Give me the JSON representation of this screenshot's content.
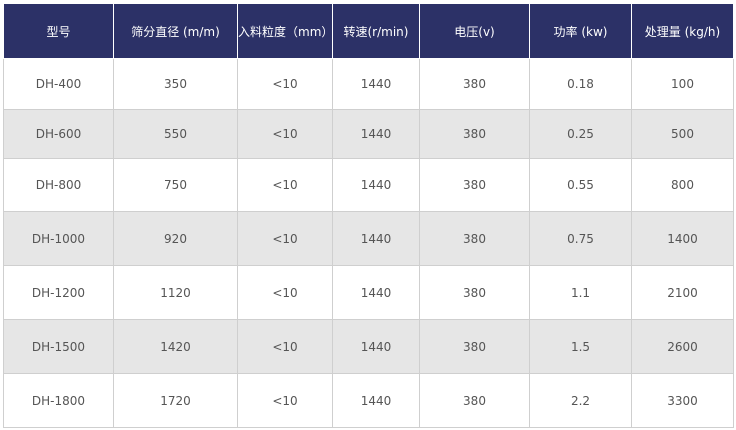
{
  "table": {
    "header": [
      "型号",
      "筛分直径 (m/m)",
      "入料粒度（mm）",
      "转速(r/min)",
      "电压(v)",
      "功率 (kw)",
      "处理量 (kg/h)"
    ],
    "rows": [
      [
        "DH-400",
        "350",
        "<10",
        "1440",
        "380",
        "0.18",
        "100"
      ],
      [
        "DH-600",
        "550",
        "<10",
        "1440",
        "380",
        "0.25",
        "500"
      ],
      [
        "DH-800",
        "750",
        "<10",
        "1440",
        "380",
        "0.55",
        "800"
      ],
      [
        "DH-1000",
        "920",
        "<10",
        "1440",
        "380",
        "0.75",
        "1400"
      ],
      [
        "DH-1200",
        "1120",
        "<10",
        "1440",
        "380",
        "1.1",
        "2100"
      ],
      [
        "DH-1500",
        "1420",
        "<10",
        "1440",
        "380",
        "1.5",
        "2600"
      ],
      [
        "DH-1800",
        "1720",
        "<10",
        "1440",
        "380",
        "2.2",
        "3300"
      ]
    ]
  }
}
